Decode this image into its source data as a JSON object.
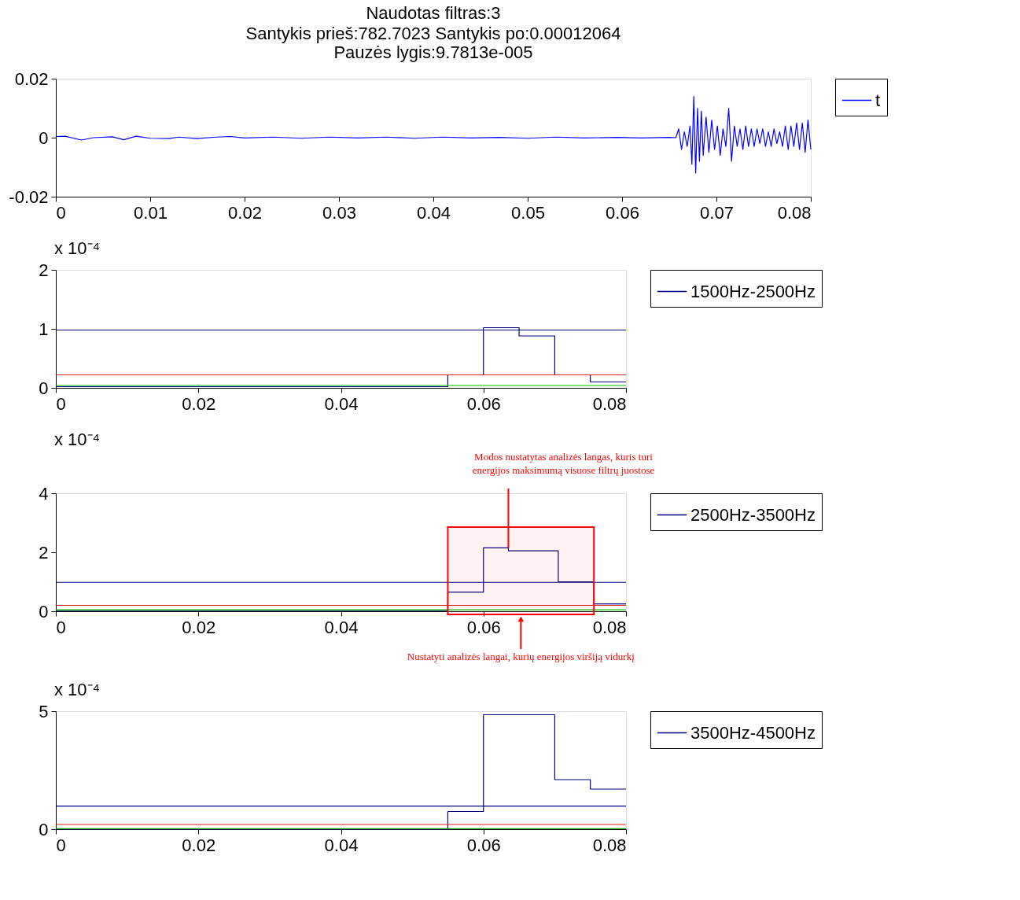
{
  "chart_data": [
    {
      "type": "line",
      "title": "Naudotas filtras:3",
      "subtitle": "Santykis prieš:782.7023 Santykis po:0.00012064\nPauzės lygis:9.7813e-005",
      "legend": "right",
      "grid": false,
      "xlim": [
        0,
        0.08
      ],
      "xticks": [
        0,
        0.01,
        0.02,
        0.03,
        0.04,
        0.05,
        0.06,
        0.07,
        0.08
      ],
      "ylim": [
        -0.02,
        0.02
      ],
      "yticks": [
        -0.02,
        0,
        0.02
      ],
      "x": [
        0,
        0.001,
        0.0027,
        0.004,
        0.006,
        0.0072,
        0.0085,
        0.01,
        0.012,
        0.013,
        0.015,
        0.017,
        0.0185,
        0.02,
        0.023,
        0.026,
        0.029,
        0.032,
        0.035,
        0.038,
        0.041,
        0.044,
        0.047,
        0.05,
        0.053,
        0.056,
        0.0595,
        0.062,
        0.065,
        0.0657,
        0.066,
        0.0663,
        0.0666,
        0.0669,
        0.0672,
        0.0674,
        0.0676,
        0.0678,
        0.068,
        0.0682,
        0.0684,
        0.0686,
        0.0689,
        0.0692,
        0.0695,
        0.0698,
        0.0701,
        0.0704,
        0.0707,
        0.071,
        0.0713,
        0.0716,
        0.0719,
        0.0722,
        0.0725,
        0.0728,
        0.0731,
        0.0734,
        0.0737,
        0.074,
        0.0743,
        0.0746,
        0.0749,
        0.0752,
        0.0755,
        0.0758,
        0.0761,
        0.0764,
        0.0767,
        0.077,
        0.0773,
        0.0776,
        0.0779,
        0.0782,
        0.0785,
        0.0788,
        0.0791,
        0.0794,
        0.0797,
        0.08
      ],
      "series": [
        {
          "name": "t",
          "color": "#0000ff",
          "values": [
            0.0004,
            0.0005,
            -0.0008,
            0,
            0.0003,
            -0.0007,
            0.0005,
            -0.0002,
            -0.0003,
            0.0002,
            -0.0003,
            0.0002,
            0.0004,
            -0.0001,
            0.0002,
            -0.0002,
            0.0002,
            -0.0001,
            0.0002,
            -0.0002,
            0.0002,
            -0.0001,
            0.0001,
            -0.0002,
            0.0002,
            -0.0001,
            0.0001,
            -0.0001,
            0.0001,
            0,
            0.003,
            -0.004,
            0.002,
            -0.003,
            0.004,
            -0.009,
            0.014,
            -0.012,
            0.01,
            -0.008,
            0.009,
            -0.006,
            0.007,
            -0.005,
            0.006,
            -0.004,
            0.004,
            -0.006,
            0.003,
            -0.003,
            0.01,
            -0.008,
            0.004,
            -0.003,
            0.003,
            -0.004,
            0.004,
            -0.003,
            0.003,
            -0.003,
            0.003,
            -0.002,
            0.003,
            -0.003,
            0.002,
            -0.003,
            0.003,
            -0.002,
            0.002,
            -0.003,
            0.004,
            -0.004,
            0.004,
            -0.003,
            0.005,
            -0.004,
            0.005,
            -0.005,
            0.006,
            -0.004
          ]
        }
      ]
    },
    {
      "type": "step",
      "ylabel": "x 10⁻⁴",
      "legend": "right",
      "grid": false,
      "xlim": [
        0,
        0.08
      ],
      "xticks": [
        0,
        0.02,
        0.04,
        0.06,
        0.08
      ],
      "ylim": [
        0,
        2
      ],
      "yticks": [
        0,
        1,
        2
      ],
      "x": [
        0,
        0.055,
        0.06,
        0.065,
        0.07,
        0.075,
        0.08
      ],
      "series": [
        {
          "name": "1500Hz-2500Hz",
          "color": "#000080",
          "values": [
            0.02,
            0.22,
            1.02,
            0.88,
            0.22,
            0.1,
            0.1
          ]
        }
      ],
      "ref_lines": [
        {
          "axis": "y",
          "value": 0.98,
          "color": "#000080"
        },
        {
          "axis": "y",
          "value": 0.22,
          "color": "#e02020"
        },
        {
          "axis": "y",
          "value": 0.04,
          "color": "#00c000"
        }
      ]
    },
    {
      "type": "step",
      "ylabel": "x 10⁻⁴",
      "legend": "right",
      "grid": false,
      "xlim": [
        0,
        0.08
      ],
      "xticks": [
        0,
        0.02,
        0.04,
        0.06,
        0.08
      ],
      "ylim": [
        0,
        4
      ],
      "yticks": [
        0,
        2,
        4
      ],
      "x": [
        0,
        0.055,
        0.06,
        0.0635,
        0.0705,
        0.0755,
        0.08
      ],
      "series": [
        {
          "name": "2500Hz-3500Hz",
          "color": "#000080",
          "values": [
            0.02,
            0.65,
            2.15,
            2.05,
            1.0,
            0.25,
            0.25
          ]
        }
      ],
      "ref_lines": [
        {
          "axis": "y",
          "value": 0.98,
          "color": "#000080"
        },
        {
          "axis": "y",
          "value": 0.2,
          "color": "#e02020"
        },
        {
          "axis": "y",
          "value": 0.05,
          "color": "#00c000"
        }
      ],
      "bands": [
        {
          "axis": "x",
          "from": 0.055,
          "to": 0.0755,
          "label": "Nustatyti analizės langai, kurių energijos viršiją vidurkį",
          "color": "#ff0000"
        }
      ],
      "annotations": [
        {
          "text": "Modos nustatytas analizės langas, kuris turi energijos maksimumą visuose filtrų juostose",
          "x": 0.0635,
          "y": 2.15
        }
      ]
    },
    {
      "type": "step",
      "ylabel": "x 10⁻⁴",
      "legend": "right",
      "grid": false,
      "xlim": [
        0,
        0.08
      ],
      "xticks": [
        0,
        0.02,
        0.04,
        0.06,
        0.08
      ],
      "ylim": [
        0,
        5
      ],
      "yticks": [
        0,
        5
      ],
      "x": [
        0,
        0.055,
        0.06,
        0.07,
        0.075,
        0.08
      ],
      "series": [
        {
          "name": "3500Hz-4500Hz",
          "color": "#000080",
          "values": [
            0,
            0.75,
            4.85,
            2.1,
            1.7,
            1.7
          ]
        }
      ],
      "ref_lines": [
        {
          "axis": "y",
          "value": 0.98,
          "color": "#000080"
        },
        {
          "axis": "y",
          "value": 0.2,
          "color": "#e02020"
        },
        {
          "axis": "y",
          "value": 0.02,
          "color": "#00a000"
        }
      ]
    }
  ]
}
